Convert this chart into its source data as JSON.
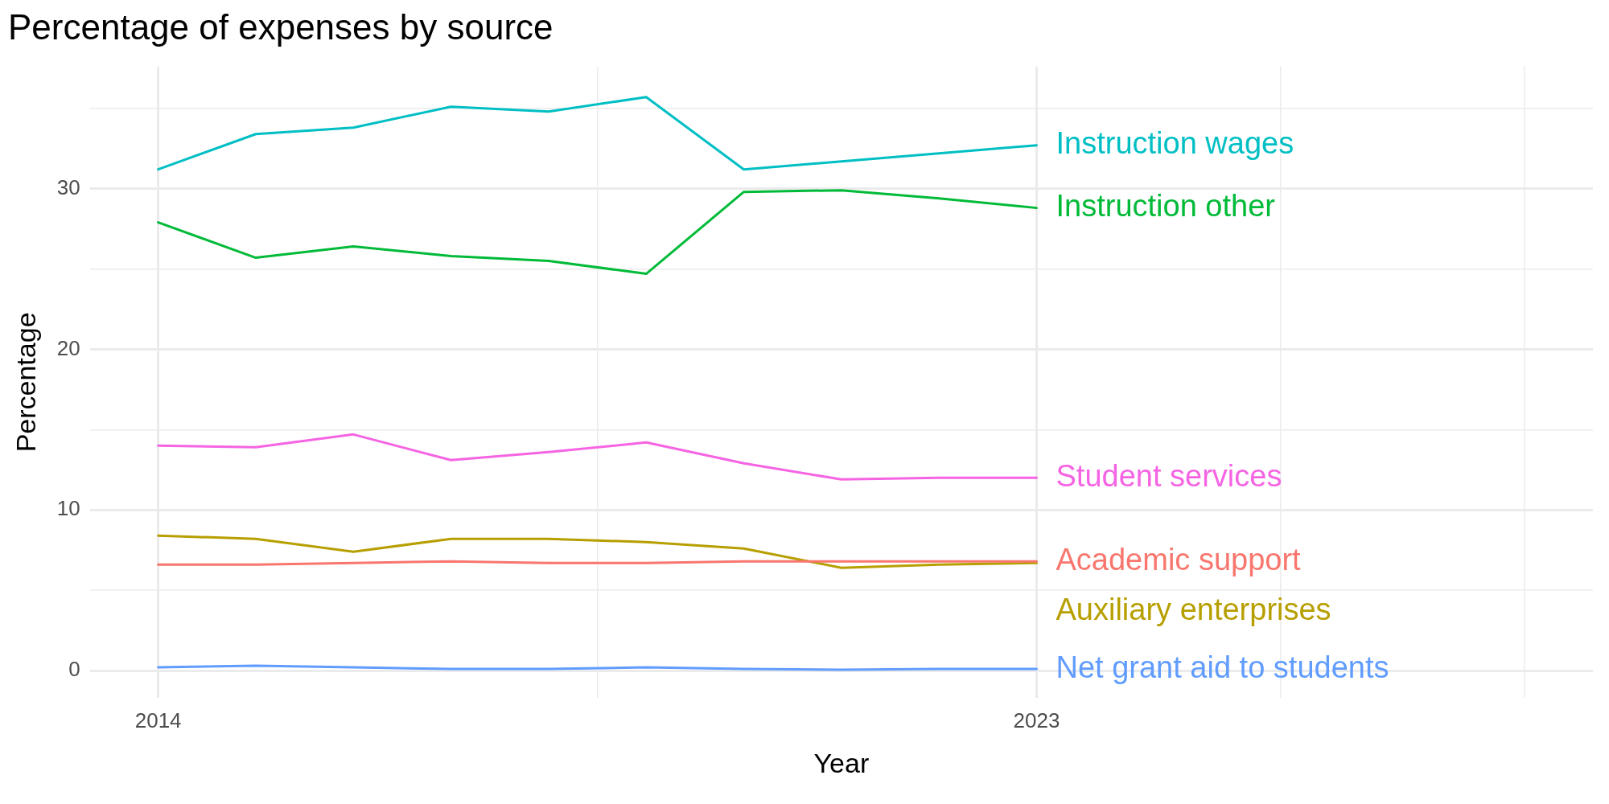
{
  "chart_data": {
    "type": "line",
    "title": "Percentage of expenses by source",
    "xlabel": "Year",
    "ylabel": "Percentage",
    "x": [
      2014,
      2015,
      2016,
      2017,
      2018,
      2019,
      2020,
      2021,
      2022,
      2023
    ],
    "xlim": [
      2013.3,
      2028.7
    ],
    "xticks": [
      2014,
      {
        "value": 2018.5,
        "label": null
      },
      2023,
      {
        "value": 2025.5,
        "label": null
      },
      {
        "value": 2028,
        "label": null
      }
    ],
    "ylim": [
      -1.7,
      37.6
    ],
    "yticks": [
      0,
      {
        "value": 5,
        "label": null
      },
      10,
      {
        "value": 15,
        "label": null
      },
      20,
      {
        "value": 25,
        "label": null
      },
      30,
      {
        "value": 35,
        "label": null
      }
    ],
    "grid": true,
    "legend": false,
    "marker": "none",
    "line_style": "solid",
    "series": [
      {
        "name": "Instruction wages",
        "color": "#00bfc4",
        "values": [
          31.2,
          33.4,
          33.8,
          35.1,
          34.8,
          35.7,
          31.2,
          31.7,
          32.2,
          32.7
        ]
      },
      {
        "name": "Instruction other",
        "color": "#00ba38",
        "values": [
          27.9,
          25.7,
          26.4,
          25.8,
          25.5,
          24.7,
          29.8,
          29.9,
          29.4,
          28.8
        ]
      },
      {
        "name": "Student services",
        "color": "#f564e3",
        "values": [
          14.0,
          13.9,
          14.7,
          13.1,
          13.6,
          14.2,
          12.9,
          11.9,
          12.0,
          12.0
        ]
      },
      {
        "name": "Academic support",
        "color": "#f8766d",
        "values": [
          6.6,
          6.6,
          6.7,
          6.8,
          6.7,
          6.7,
          6.8,
          6.8,
          6.8,
          6.8
        ]
      },
      {
        "name": "Auxiliary enterprises",
        "color": "#b79f00",
        "values": [
          8.4,
          8.2,
          7.4,
          8.2,
          8.2,
          8.0,
          7.6,
          6.4,
          6.6,
          6.7
        ]
      },
      {
        "name": "Net grant aid to students",
        "color": "#619cff",
        "values": [
          0.2,
          0.3,
          0.2,
          0.1,
          0.1,
          0.2,
          0.1,
          0.05,
          0.1,
          0.1
        ]
      }
    ]
  }
}
